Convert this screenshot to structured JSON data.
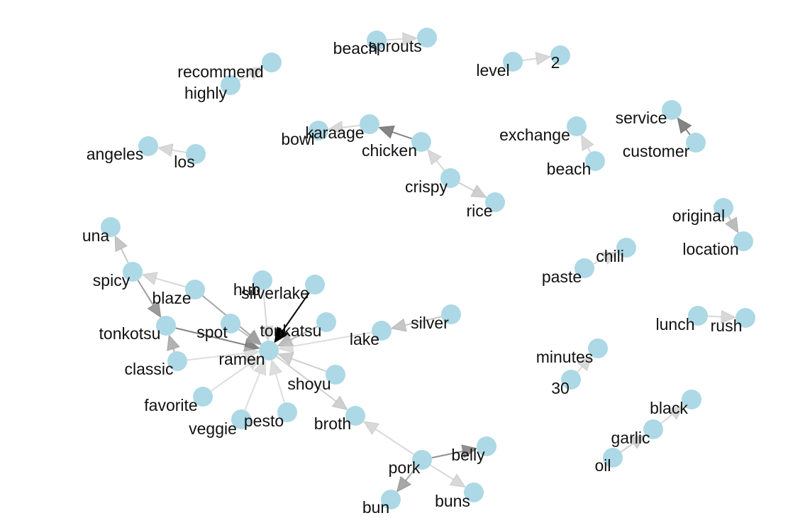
{
  "graph": {
    "node_color": "#add8e6",
    "label_color": "#111111",
    "nodes": [
      {
        "id": "beach",
        "label": "beach"
      },
      {
        "id": "sprouts",
        "label": "sprouts"
      },
      {
        "id": "level",
        "label": "level"
      },
      {
        "id": "2",
        "label": "2"
      },
      {
        "id": "recommend",
        "label": "recommend"
      },
      {
        "id": "highly",
        "label": "highly"
      },
      {
        "id": "bowl",
        "label": "bowl"
      },
      {
        "id": "karaage",
        "label": "karaage"
      },
      {
        "id": "chicken",
        "label": "chicken"
      },
      {
        "id": "crispy",
        "label": "crispy"
      },
      {
        "id": "rice",
        "label": "rice"
      },
      {
        "id": "exchange",
        "label": "exchange"
      },
      {
        "id": "beach2",
        "label": "beach"
      },
      {
        "id": "service",
        "label": "service"
      },
      {
        "id": "customer",
        "label": "customer"
      },
      {
        "id": "angeles",
        "label": "angeles"
      },
      {
        "id": "los",
        "label": "los"
      },
      {
        "id": "original",
        "label": "original"
      },
      {
        "id": "location",
        "label": "location"
      },
      {
        "id": "chili",
        "label": "chili"
      },
      {
        "id": "paste",
        "label": "paste"
      },
      {
        "id": "una",
        "label": "una"
      },
      {
        "id": "spicy",
        "label": "spicy"
      },
      {
        "id": "blaze",
        "label": "blaze"
      },
      {
        "id": "hub",
        "label": "hub"
      },
      {
        "id": "silverlake",
        "label": "silverlake"
      },
      {
        "id": "tonkotsu",
        "label": "tonkotsu"
      },
      {
        "id": "spot",
        "label": "spot"
      },
      {
        "id": "tonkatsu",
        "label": "tonkatsu"
      },
      {
        "id": "ramen",
        "label": "ramen"
      },
      {
        "id": "classic",
        "label": "classic"
      },
      {
        "id": "lake",
        "label": "lake"
      },
      {
        "id": "silver",
        "label": "silver"
      },
      {
        "id": "shoyu",
        "label": "shoyu"
      },
      {
        "id": "favorite",
        "label": "favorite"
      },
      {
        "id": "veggie",
        "label": "veggie"
      },
      {
        "id": "pesto",
        "label": "pesto"
      },
      {
        "id": "broth",
        "label": "broth"
      },
      {
        "id": "pork",
        "label": "pork"
      },
      {
        "id": "belly",
        "label": "belly"
      },
      {
        "id": "bun",
        "label": "bun"
      },
      {
        "id": "buns",
        "label": "buns"
      },
      {
        "id": "lunch",
        "label": "lunch"
      },
      {
        "id": "rush",
        "label": "rush"
      },
      {
        "id": "minutes",
        "label": "minutes"
      },
      {
        "id": "30",
        "label": "30"
      },
      {
        "id": "black",
        "label": "black"
      },
      {
        "id": "garlic",
        "label": "garlic"
      },
      {
        "id": "oil",
        "label": "oil"
      }
    ],
    "edges": [
      {
        "from": "beach",
        "to": "sprouts",
        "weight": 0.15
      },
      {
        "from": "level",
        "to": "2",
        "weight": 0.15
      },
      {
        "from": "highly",
        "to": "recommend",
        "weight": 0.15
      },
      {
        "from": "chicken",
        "to": "karaage",
        "weight": 0.55
      },
      {
        "from": "karaage",
        "to": "bowl",
        "weight": 0.15
      },
      {
        "from": "crispy",
        "to": "chicken",
        "weight": 0.15
      },
      {
        "from": "crispy",
        "to": "rice",
        "weight": 0.2
      },
      {
        "from": "beach2",
        "to": "exchange",
        "weight": 0.15
      },
      {
        "from": "customer",
        "to": "service",
        "weight": 0.55
      },
      {
        "from": "los",
        "to": "angeles",
        "weight": 0.15
      },
      {
        "from": "original",
        "to": "location",
        "weight": 0.3
      },
      {
        "from": "paste",
        "to": "chili",
        "weight": 0.15
      },
      {
        "from": "spicy",
        "to": "una",
        "weight": 0.25
      },
      {
        "from": "blaze",
        "to": "spicy",
        "weight": 0.15
      },
      {
        "from": "spicy",
        "to": "tonkotsu",
        "weight": 0.45
      },
      {
        "from": "classic",
        "to": "tonkotsu",
        "weight": 0.35
      },
      {
        "from": "tonkotsu",
        "to": "ramen",
        "weight": 0.55
      },
      {
        "from": "blaze",
        "to": "ramen",
        "weight": 0.4
      },
      {
        "from": "spot",
        "to": "ramen",
        "weight": 0.3
      },
      {
        "from": "hub",
        "to": "ramen",
        "weight": 0.15
      },
      {
        "from": "silverlake",
        "to": "ramen",
        "weight": 1.0
      },
      {
        "from": "tonkatsu",
        "to": "ramen",
        "weight": 0.3
      },
      {
        "from": "classic",
        "to": "ramen",
        "weight": 0.12
      },
      {
        "from": "lake",
        "to": "ramen",
        "weight": 0.12
      },
      {
        "from": "silver",
        "to": "lake",
        "weight": 0.25
      },
      {
        "from": "shoyu",
        "to": "ramen",
        "weight": 0.2
      },
      {
        "from": "favorite",
        "to": "ramen",
        "weight": 0.12
      },
      {
        "from": "veggie",
        "to": "ramen",
        "weight": 0.12
      },
      {
        "from": "pesto",
        "to": "ramen",
        "weight": 0.12
      },
      {
        "from": "ramen",
        "to": "broth",
        "weight": 0.2
      },
      {
        "from": "pork",
        "to": "broth",
        "weight": 0.15
      },
      {
        "from": "pork",
        "to": "belly",
        "weight": 0.5
      },
      {
        "from": "pork",
        "to": "bun",
        "weight": 0.4
      },
      {
        "from": "pork",
        "to": "buns",
        "weight": 0.15
      },
      {
        "from": "lunch",
        "to": "rush",
        "weight": 0.15
      },
      {
        "from": "30",
        "to": "minutes",
        "weight": 0.15
      },
      {
        "from": "garlic",
        "to": "black",
        "weight": 0.15
      },
      {
        "from": "oil",
        "to": "garlic",
        "weight": 0.2
      }
    ]
  }
}
